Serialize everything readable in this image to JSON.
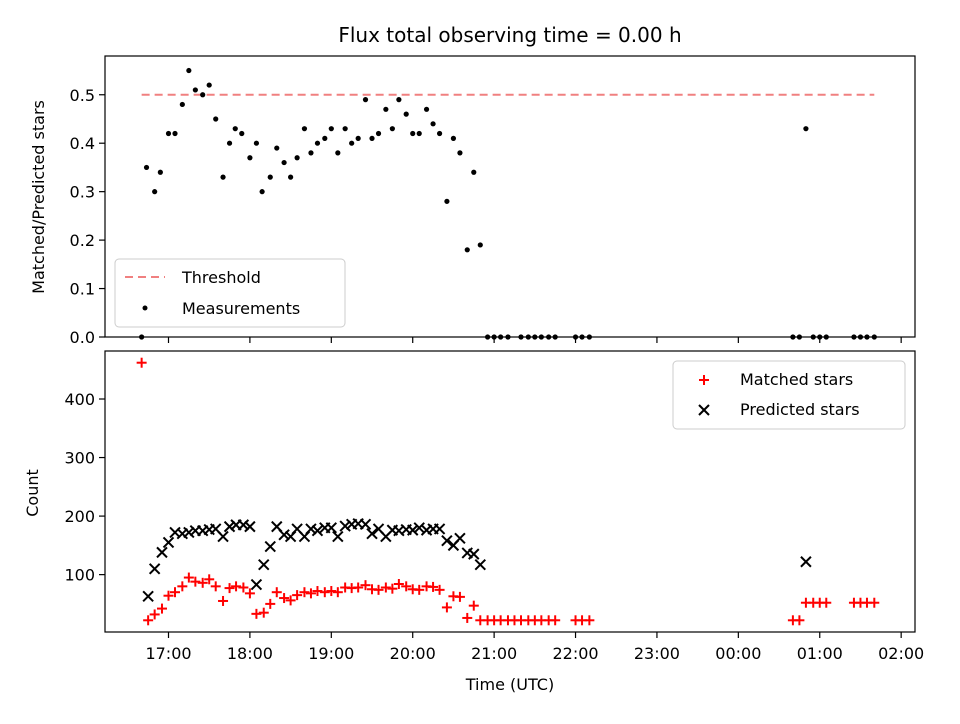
{
  "figure": {
    "title": "Flux total observing time = 0.00 h",
    "xlabel": "Time (UTC)",
    "x_tick_labels": [
      "17:00",
      "18:00",
      "19:00",
      "20:00",
      "21:00",
      "22:00",
      "23:00",
      "00:00",
      "01:00",
      "02:00"
    ],
    "colors": {
      "threshold": "#f08080",
      "measurements": "#000000",
      "matched": "#ff0000",
      "predicted": "#000000"
    }
  },
  "chart_data": [
    {
      "type": "scatter",
      "panel": "top",
      "xlabel": "",
      "ylabel": "Matched/Predicted stars",
      "x_unit": "hours since 17:00 UTC",
      "xlim": [
        -0.78,
        9.17
      ],
      "ylim": [
        0.0,
        0.58
      ],
      "y_ticks": [
        0.0,
        0.1,
        0.2,
        0.3,
        0.4,
        0.5
      ],
      "y_tick_labels": [
        "0.0",
        "0.1",
        "0.2",
        "0.3",
        "0.4",
        "0.5"
      ],
      "legend_position": "lower-left",
      "grid": false,
      "threshold": {
        "name": "Threshold",
        "value": 0.5,
        "x_range": [
          -0.33,
          8.67
        ],
        "style": "dashed"
      },
      "series": [
        {
          "name": "Measurements",
          "points": [
            [
              -0.33,
              0.0
            ],
            [
              -0.27,
              0.35
            ],
            [
              -0.17,
              0.3
            ],
            [
              -0.1,
              0.34
            ],
            [
              0.0,
              0.42
            ],
            [
              0.08,
              0.42
            ],
            [
              0.17,
              0.48
            ],
            [
              0.25,
              0.55
            ],
            [
              0.33,
              0.51
            ],
            [
              0.42,
              0.5
            ],
            [
              0.5,
              0.52
            ],
            [
              0.58,
              0.45
            ],
            [
              0.67,
              0.33
            ],
            [
              0.75,
              0.4
            ],
            [
              0.82,
              0.43
            ],
            [
              0.9,
              0.42
            ],
            [
              1.0,
              0.37
            ],
            [
              1.08,
              0.4
            ],
            [
              1.15,
              0.3
            ],
            [
              1.25,
              0.33
            ],
            [
              1.33,
              0.39
            ],
            [
              1.42,
              0.36
            ],
            [
              1.5,
              0.33
            ],
            [
              1.58,
              0.37
            ],
            [
              1.67,
              0.43
            ],
            [
              1.75,
              0.38
            ],
            [
              1.83,
              0.4
            ],
            [
              1.92,
              0.41
            ],
            [
              2.0,
              0.43
            ],
            [
              2.08,
              0.38
            ],
            [
              2.17,
              0.43
            ],
            [
              2.25,
              0.4
            ],
            [
              2.33,
              0.41
            ],
            [
              2.42,
              0.49
            ],
            [
              2.5,
              0.41
            ],
            [
              2.58,
              0.42
            ],
            [
              2.67,
              0.47
            ],
            [
              2.75,
              0.43
            ],
            [
              2.83,
              0.49
            ],
            [
              2.92,
              0.46
            ],
            [
              3.0,
              0.42
            ],
            [
              3.08,
              0.42
            ],
            [
              3.17,
              0.47
            ],
            [
              3.25,
              0.44
            ],
            [
              3.33,
              0.42
            ],
            [
              3.42,
              0.28
            ],
            [
              3.5,
              0.41
            ],
            [
              3.58,
              0.38
            ],
            [
              3.67,
              0.18
            ],
            [
              3.75,
              0.34
            ],
            [
              3.83,
              0.19
            ],
            [
              3.92,
              0.0
            ],
            [
              4.0,
              0.0
            ],
            [
              4.08,
              0.0
            ],
            [
              4.17,
              0.0
            ],
            [
              4.33,
              0.0
            ],
            [
              4.42,
              0.0
            ],
            [
              4.5,
              0.0
            ],
            [
              4.58,
              0.0
            ],
            [
              4.67,
              0.0
            ],
            [
              4.75,
              0.0
            ],
            [
              5.0,
              0.0
            ],
            [
              5.08,
              0.0
            ],
            [
              5.17,
              0.0
            ],
            [
              7.67,
              0.0
            ],
            [
              7.75,
              0.0
            ],
            [
              7.83,
              0.43
            ],
            [
              7.92,
              0.0
            ],
            [
              8.0,
              0.0
            ],
            [
              8.08,
              0.0
            ],
            [
              8.42,
              0.0
            ],
            [
              8.5,
              0.0
            ],
            [
              8.58,
              0.0
            ],
            [
              8.67,
              0.0
            ]
          ]
        }
      ]
    },
    {
      "type": "scatter",
      "panel": "bottom",
      "xlabel": "Time (UTC)",
      "ylabel": "Count",
      "x_unit": "hours since 17:00 UTC",
      "xlim": [
        -0.78,
        9.17
      ],
      "ylim": [
        2,
        482
      ],
      "y_ticks": [
        100,
        200,
        300,
        400
      ],
      "y_tick_labels": [
        "100",
        "200",
        "300",
        "400"
      ],
      "legend_position": "upper-right",
      "grid": false,
      "series": [
        {
          "name": "Matched stars",
          "marker": "plus",
          "points": [
            [
              -0.33,
              462
            ],
            [
              -0.25,
              22
            ],
            [
              -0.17,
              32
            ],
            [
              -0.08,
              42
            ],
            [
              0.0,
              64
            ],
            [
              0.08,
              70
            ],
            [
              0.17,
              80
            ],
            [
              0.25,
              95
            ],
            [
              0.33,
              88
            ],
            [
              0.42,
              86
            ],
            [
              0.5,
              92
            ],
            [
              0.58,
              80
            ],
            [
              0.67,
              55
            ],
            [
              0.75,
              77
            ],
            [
              0.83,
              80
            ],
            [
              0.92,
              78
            ],
            [
              1.0,
              68
            ],
            [
              1.08,
              33
            ],
            [
              1.17,
              35
            ],
            [
              1.25,
              50
            ],
            [
              1.33,
              70
            ],
            [
              1.42,
              60
            ],
            [
              1.5,
              56
            ],
            [
              1.58,
              65
            ],
            [
              1.67,
              70
            ],
            [
              1.75,
              68
            ],
            [
              1.83,
              72
            ],
            [
              1.92,
              70
            ],
            [
              2.0,
              72
            ],
            [
              2.08,
              70
            ],
            [
              2.17,
              78
            ],
            [
              2.25,
              77
            ],
            [
              2.33,
              78
            ],
            [
              2.42,
              82
            ],
            [
              2.5,
              75
            ],
            [
              2.58,
              74
            ],
            [
              2.67,
              78
            ],
            [
              2.75,
              76
            ],
            [
              2.83,
              84
            ],
            [
              2.92,
              80
            ],
            [
              3.0,
              75
            ],
            [
              3.08,
              74
            ],
            [
              3.17,
              80
            ],
            [
              3.25,
              79
            ],
            [
              3.33,
              74
            ],
            [
              3.42,
              44
            ],
            [
              3.5,
              63
            ],
            [
              3.58,
              62
            ],
            [
              3.67,
              26
            ],
            [
              3.75,
              47
            ],
            [
              3.83,
              22
            ],
            [
              3.92,
              22
            ],
            [
              4.0,
              22
            ],
            [
              4.08,
              22
            ],
            [
              4.17,
              22
            ],
            [
              4.25,
              22
            ],
            [
              4.33,
              22
            ],
            [
              4.42,
              22
            ],
            [
              4.5,
              22
            ],
            [
              4.58,
              22
            ],
            [
              4.67,
              22
            ],
            [
              4.75,
              22
            ],
            [
              5.0,
              22
            ],
            [
              5.08,
              22
            ],
            [
              5.17,
              22
            ],
            [
              7.67,
              22
            ],
            [
              7.75,
              22
            ],
            [
              7.83,
              52
            ],
            [
              7.92,
              52
            ],
            [
              8.0,
              52
            ],
            [
              8.08,
              52
            ],
            [
              8.42,
              52
            ],
            [
              8.5,
              52
            ],
            [
              8.58,
              52
            ],
            [
              8.67,
              52
            ]
          ]
        },
        {
          "name": "Predicted stars",
          "marker": "x",
          "points": [
            [
              -0.25,
              63
            ],
            [
              -0.17,
              110
            ],
            [
              -0.08,
              138
            ],
            [
              0.0,
              155
            ],
            [
              0.08,
              172
            ],
            [
              0.17,
              170
            ],
            [
              0.25,
              172
            ],
            [
              0.33,
              175
            ],
            [
              0.42,
              175
            ],
            [
              0.5,
              177
            ],
            [
              0.58,
              178
            ],
            [
              0.67,
              165
            ],
            [
              0.75,
              182
            ],
            [
              0.83,
              185
            ],
            [
              0.92,
              185
            ],
            [
              1.0,
              182
            ],
            [
              1.08,
              83
            ],
            [
              1.17,
              117
            ],
            [
              1.25,
              148
            ],
            [
              1.33,
              182
            ],
            [
              1.42,
              168
            ],
            [
              1.5,
              165
            ],
            [
              1.58,
              178
            ],
            [
              1.67,
              165
            ],
            [
              1.75,
              178
            ],
            [
              1.83,
              175
            ],
            [
              1.92,
              180
            ],
            [
              2.0,
              180
            ],
            [
              2.08,
              165
            ],
            [
              2.17,
              183
            ],
            [
              2.25,
              186
            ],
            [
              2.33,
              187
            ],
            [
              2.42,
              186
            ],
            [
              2.5,
              170
            ],
            [
              2.58,
              178
            ],
            [
              2.67,
              165
            ],
            [
              2.75,
              176
            ],
            [
              2.83,
              175
            ],
            [
              2.92,
              177
            ],
            [
              3.0,
              176
            ],
            [
              3.08,
              180
            ],
            [
              3.17,
              176
            ],
            [
              3.25,
              178
            ],
            [
              3.33,
              178
            ],
            [
              3.42,
              158
            ],
            [
              3.5,
              150
            ],
            [
              3.58,
              162
            ],
            [
              3.67,
              137
            ],
            [
              3.75,
              135
            ],
            [
              3.83,
              117
            ],
            [
              7.83,
              122
            ]
          ]
        }
      ]
    }
  ]
}
